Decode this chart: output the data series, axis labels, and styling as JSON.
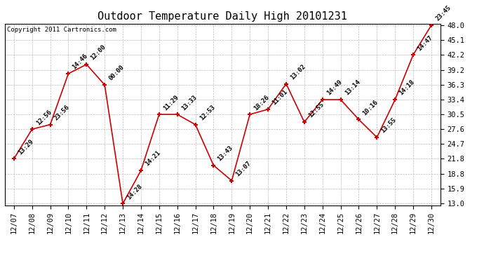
{
  "title": "Outdoor Temperature Daily High 20101231",
  "copyright": "Copyright 2011 Cartronics.com",
  "x_labels": [
    "12/07",
    "12/08",
    "12/09",
    "12/10",
    "12/11",
    "12/12",
    "12/13",
    "12/14",
    "12/15",
    "12/16",
    "12/17",
    "12/18",
    "12/19",
    "12/20",
    "12/21",
    "12/22",
    "12/23",
    "12/24",
    "12/25",
    "12/26",
    "12/27",
    "12/28",
    "12/29",
    "12/30"
  ],
  "y_values": [
    21.8,
    27.6,
    28.5,
    38.5,
    40.3,
    36.3,
    13.0,
    19.5,
    30.5,
    30.5,
    28.5,
    20.5,
    17.5,
    30.5,
    31.5,
    36.5,
    29.0,
    33.4,
    33.4,
    29.5,
    26.0,
    33.4,
    42.2,
    48.0
  ],
  "annotations": [
    "13:29",
    "12:56",
    "23:56",
    "14:46",
    "12:00",
    "00:00",
    "14:28",
    "14:21",
    "11:29",
    "13:33",
    "12:53",
    "13:43",
    "13:07",
    "18:26",
    "11:01",
    "13:02",
    "12:55",
    "14:49",
    "13:14",
    "10:16",
    "13:55",
    "14:18",
    "14:47",
    "23:45"
  ],
  "ylim_min": 13.0,
  "ylim_max": 48.0,
  "yticks": [
    13.0,
    15.9,
    18.8,
    21.8,
    24.7,
    27.6,
    30.5,
    33.4,
    36.3,
    39.2,
    42.2,
    45.1,
    48.0
  ],
  "line_color": "#cc0000",
  "marker_color": "#cc0000",
  "bg_color": "#ffffff",
  "grid_color": "#bbbbbb",
  "title_fontsize": 11,
  "annotation_fontsize": 6.5,
  "copyright_fontsize": 6.5,
  "tick_fontsize": 7.5
}
